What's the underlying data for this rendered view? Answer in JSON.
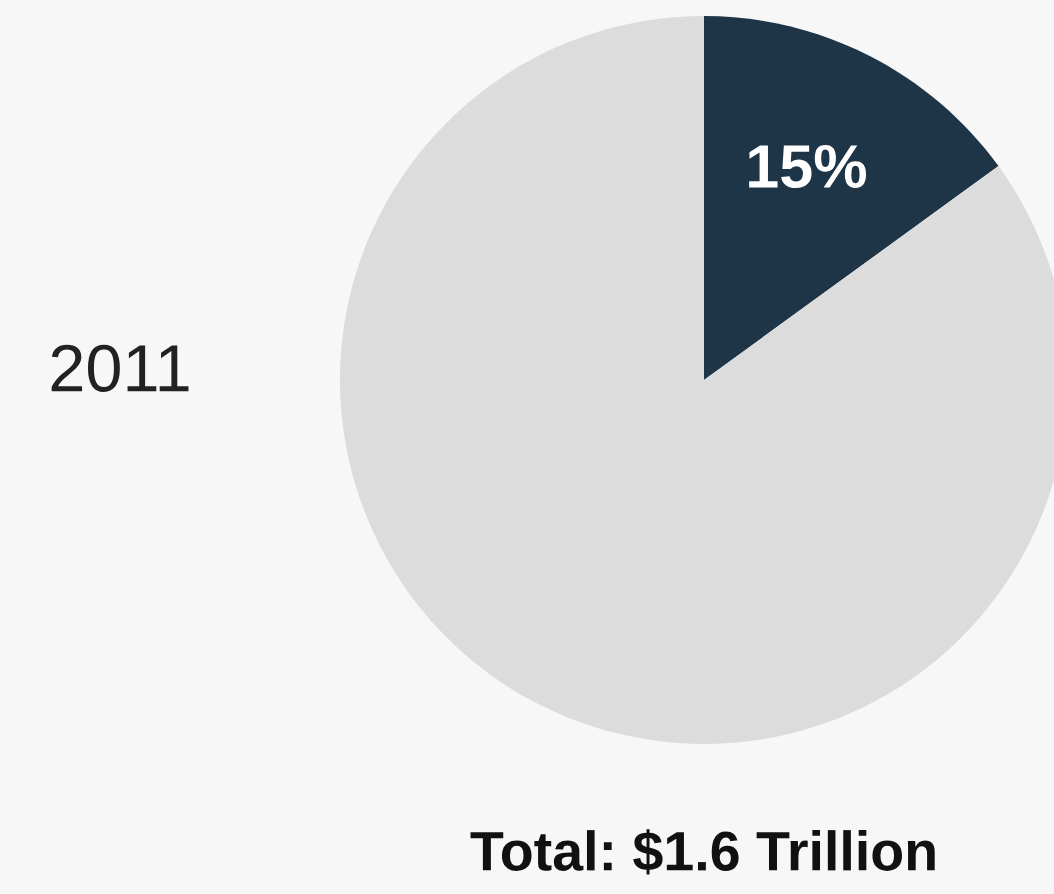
{
  "chart_data": {
    "type": "pie",
    "title": "2011",
    "categories": [
      null,
      null
    ],
    "values": [
      15,
      85
    ],
    "colors": [
      "#1e3447",
      "#dcdcdc"
    ],
    "value_labels": [
      "15%",
      null
    ],
    "annotations": [
      "Total: $1.6 Trillion"
    ]
  }
}
